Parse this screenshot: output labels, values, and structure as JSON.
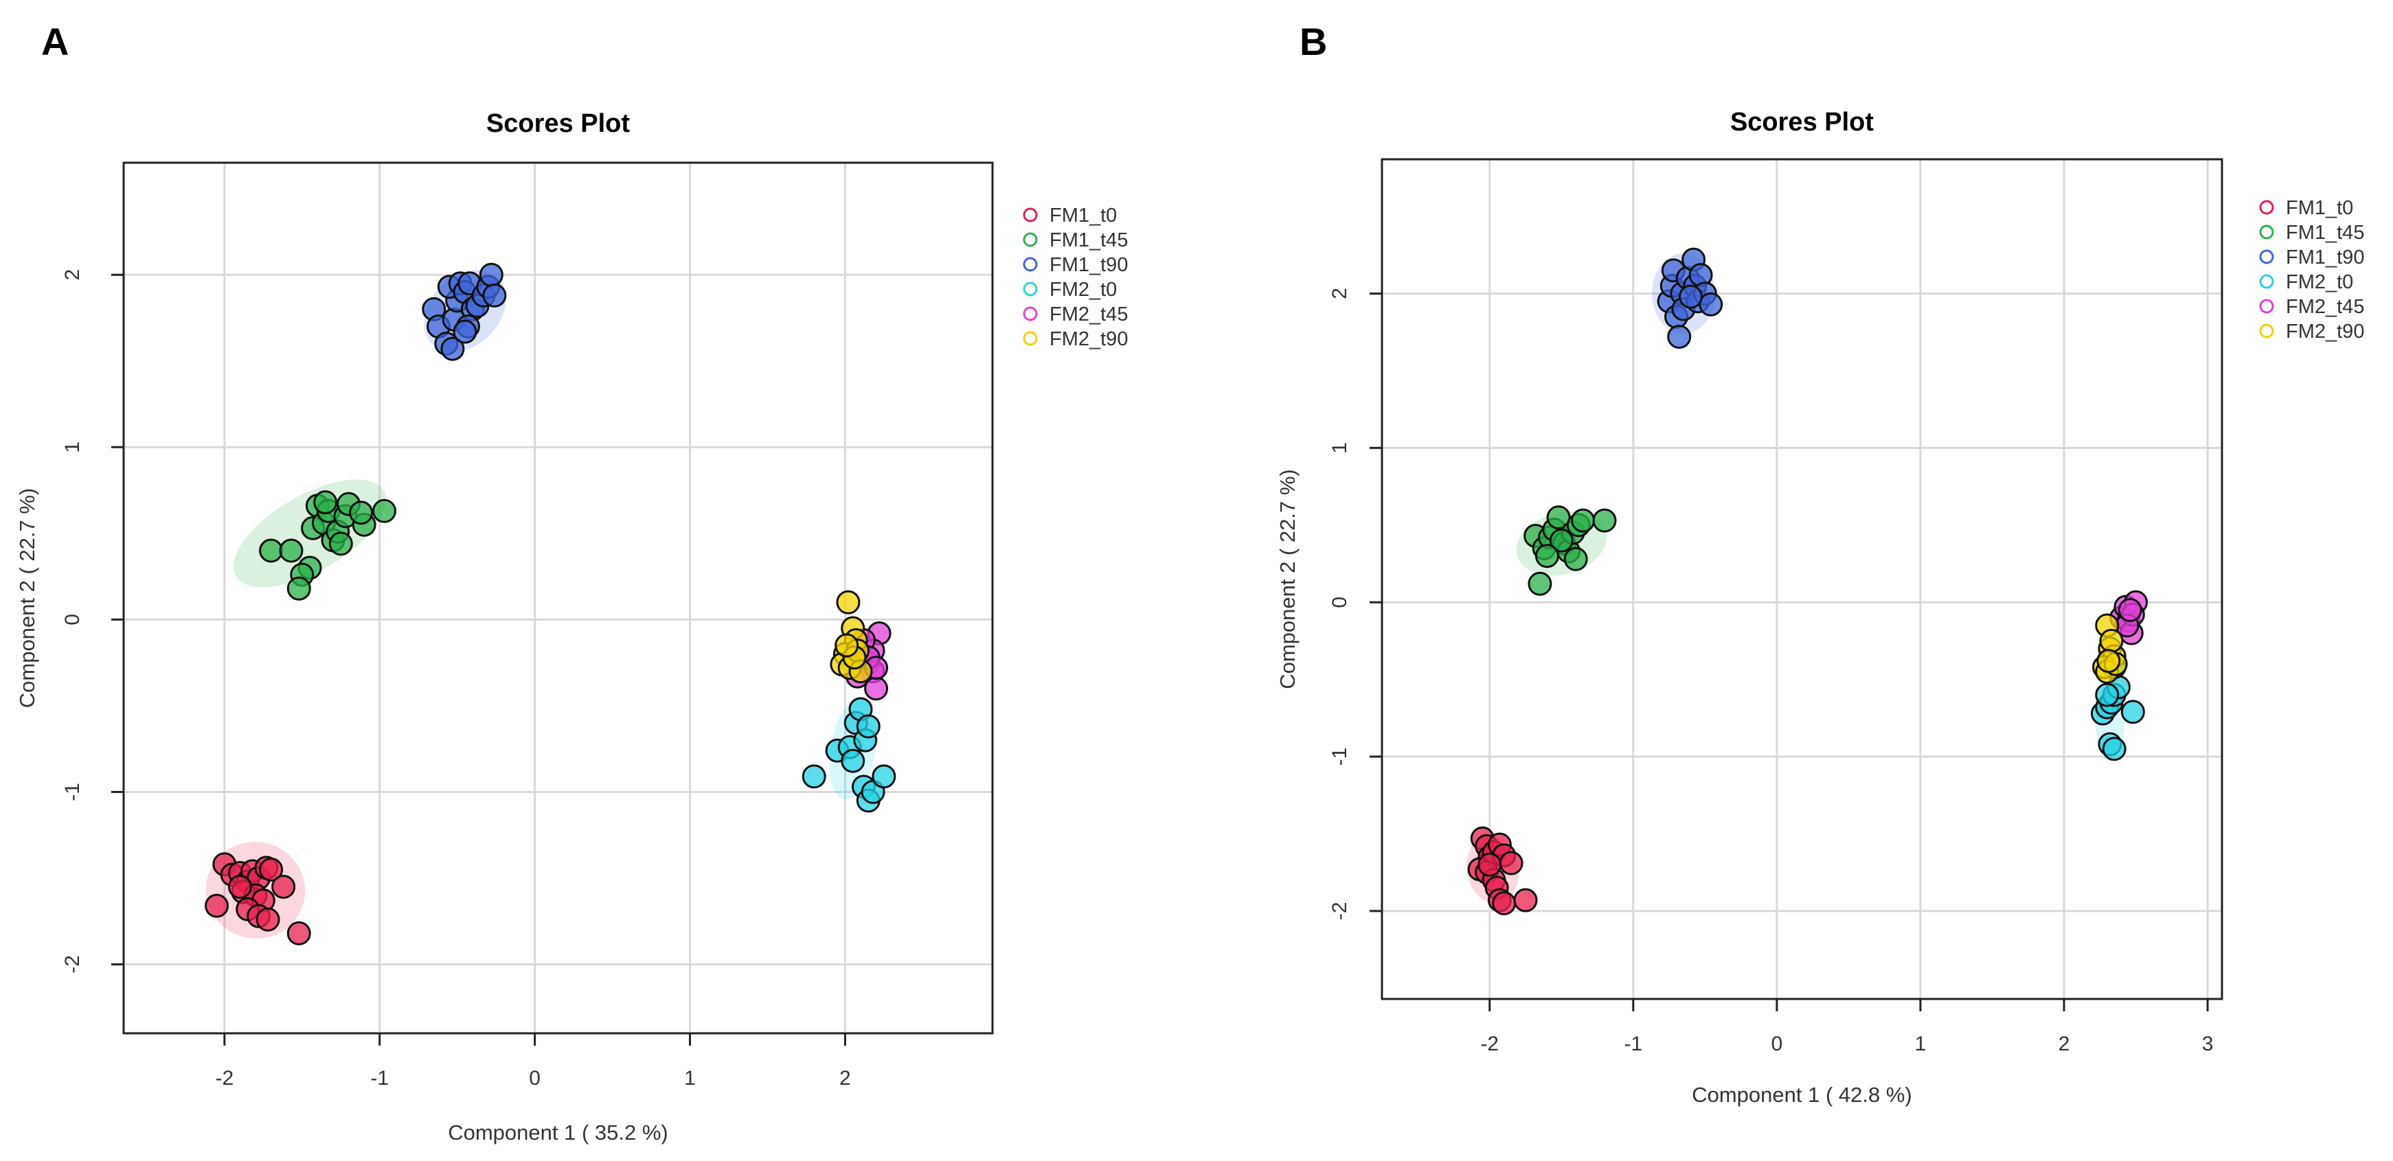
{
  "chart_data": [
    {
      "panel": "A",
      "type": "scatter",
      "title": "Scores Plot",
      "xlabel": "Component 1 ( 35.2 %)",
      "ylabel": "Component 2 ( 22.7 %)",
      "xlim": [
        -2.65,
        2.95
      ],
      "ylim": [
        -2.4,
        2.65
      ],
      "xticks": [
        -2,
        -1,
        0,
        1,
        2
      ],
      "yticks": [
        -2,
        -1,
        0,
        1,
        2
      ],
      "grid": true,
      "legend_position": "top-right",
      "series": [
        {
          "name": "FM1_t0",
          "color": "#e8214f",
          "ellipse": {
            "cx": -1.8,
            "cy": -1.57,
            "rx": 0.32,
            "ry": 0.28,
            "angle": -15
          },
          "points": [
            [
              -2.0,
              -1.42
            ],
            [
              -1.95,
              -1.48
            ],
            [
              -1.9,
              -1.47
            ],
            [
              -1.85,
              -1.52
            ],
            [
              -1.82,
              -1.46
            ],
            [
              -1.78,
              -1.5
            ],
            [
              -1.73,
              -1.44
            ],
            [
              -1.7,
              -1.45
            ],
            [
              -1.88,
              -1.58
            ],
            [
              -1.8,
              -1.6
            ],
            [
              -1.75,
              -1.63
            ],
            [
              -1.85,
              -1.68
            ],
            [
              -1.78,
              -1.72
            ],
            [
              -1.72,
              -1.74
            ],
            [
              -1.62,
              -1.55
            ],
            [
              -2.05,
              -1.66
            ],
            [
              -1.52,
              -1.82
            ],
            [
              -1.9,
              -1.55
            ]
          ]
        },
        {
          "name": "FM1_t45",
          "color": "#2bb04a",
          "ellipse": {
            "cx": -1.45,
            "cy": 0.5,
            "rx": 0.55,
            "ry": 0.22,
            "angle": 30
          },
          "points": [
            [
              -1.7,
              0.4
            ],
            [
              -1.57,
              0.4
            ],
            [
              -1.45,
              0.3
            ],
            [
              -1.5,
              0.26
            ],
            [
              -1.52,
              0.18
            ],
            [
              -1.43,
              0.53
            ],
            [
              -1.4,
              0.66
            ],
            [
              -1.36,
              0.56
            ],
            [
              -1.33,
              0.63
            ],
            [
              -1.3,
              0.46
            ],
            [
              -1.27,
              0.51
            ],
            [
              -1.25,
              0.44
            ],
            [
              -1.22,
              0.6
            ],
            [
              -1.2,
              0.67
            ],
            [
              -1.1,
              0.55
            ],
            [
              -1.12,
              0.62
            ],
            [
              -0.97,
              0.63
            ],
            [
              -1.35,
              0.68
            ]
          ]
        },
        {
          "name": "FM1_t90",
          "color": "#3e66d8",
          "ellipse": {
            "cx": -0.45,
            "cy": 1.79,
            "rx": 0.3,
            "ry": 0.2,
            "angle": 45
          },
          "points": [
            [
              -0.65,
              1.8
            ],
            [
              -0.62,
              1.7
            ],
            [
              -0.57,
              1.6
            ],
            [
              -0.53,
              1.57
            ],
            [
              -0.52,
              1.74
            ],
            [
              -0.5,
              1.85
            ],
            [
              -0.55,
              1.93
            ],
            [
              -0.48,
              1.95
            ],
            [
              -0.45,
              1.9
            ],
            [
              -0.42,
              1.95
            ],
            [
              -0.4,
              1.8
            ],
            [
              -0.43,
              1.7
            ],
            [
              -0.45,
              1.67
            ],
            [
              -0.37,
              1.82
            ],
            [
              -0.33,
              1.88
            ],
            [
              -0.3,
              1.93
            ],
            [
              -0.28,
              2.0
            ],
            [
              -0.26,
              1.88
            ]
          ]
        },
        {
          "name": "FM2_t0",
          "color": "#26d3e6",
          "ellipse": {
            "cx": 2.05,
            "cy": -0.75,
            "rx": 0.33,
            "ry": 0.13,
            "angle": 80
          },
          "points": [
            [
              1.8,
              -0.91
            ],
            [
              1.95,
              -0.76
            ],
            [
              2.03,
              -0.74
            ],
            [
              2.07,
              -0.6
            ],
            [
              2.1,
              -0.52
            ],
            [
              2.13,
              -0.7
            ],
            [
              2.15,
              -0.62
            ],
            [
              2.12,
              -0.97
            ],
            [
              2.15,
              -1.05
            ],
            [
              2.18,
              -1.0
            ],
            [
              2.25,
              -0.91
            ],
            [
              2.05,
              -0.82
            ]
          ]
        },
        {
          "name": "FM2_t45",
          "color": "#e040d8",
          "ellipse": null,
          "points": [
            [
              2.1,
              -0.2
            ],
            [
              2.15,
              -0.25
            ],
            [
              2.18,
              -0.3
            ],
            [
              2.2,
              -0.4
            ],
            [
              2.22,
              -0.08
            ],
            [
              2.18,
              -0.18
            ],
            [
              2.12,
              -0.12
            ],
            [
              2.08,
              -0.33
            ],
            [
              2.15,
              -0.22
            ],
            [
              2.2,
              -0.28
            ]
          ]
        },
        {
          "name": "FM2_t90",
          "color": "#f2d400",
          "ellipse": null,
          "points": [
            [
              2.02,
              0.1
            ],
            [
              2.05,
              -0.05
            ],
            [
              2.07,
              -0.12
            ],
            [
              2.0,
              -0.2
            ],
            [
              1.98,
              -0.26
            ],
            [
              2.03,
              -0.28
            ],
            [
              2.08,
              -0.18
            ],
            [
              2.1,
              -0.3
            ],
            [
              2.06,
              -0.22
            ],
            [
              2.01,
              -0.15
            ]
          ]
        }
      ]
    },
    {
      "panel": "B",
      "type": "scatter",
      "title": "Scores Plot",
      "xlabel": "Component 1 ( 42.8 %)",
      "ylabel": "Component 2 ( 22.7 %)",
      "xlim": [
        -2.75,
        3.1
      ],
      "ylim": [
        -2.57,
        2.87
      ],
      "xticks": [
        -2,
        -1,
        0,
        1,
        2,
        3
      ],
      "yticks": [
        -2,
        -1,
        0,
        1,
        2
      ],
      "grid": true,
      "legend_position": "top-right",
      "series": [
        {
          "name": "FM1_t0",
          "color": "#e8214f",
          "ellipse": {
            "cx": -1.98,
            "cy": -1.73,
            "rx": 0.18,
            "ry": 0.22,
            "angle": 10
          },
          "points": [
            [
              -2.05,
              -1.53
            ],
            [
              -2.02,
              -1.58
            ],
            [
              -2.0,
              -1.65
            ],
            [
              -1.97,
              -1.62
            ],
            [
              -1.93,
              -1.57
            ],
            [
              -1.9,
              -1.64
            ],
            [
              -1.85,
              -1.69
            ],
            [
              -2.07,
              -1.73
            ],
            [
              -2.02,
              -1.75
            ],
            [
              -1.97,
              -1.8
            ],
            [
              -1.95,
              -1.85
            ],
            [
              -1.93,
              -1.93
            ],
            [
              -1.9,
              -1.95
            ],
            [
              -1.75,
              -1.93
            ],
            [
              -2.0,
              -1.7
            ]
          ]
        },
        {
          "name": "FM1_t45",
          "color": "#2bb04a",
          "ellipse": {
            "cx": -1.5,
            "cy": 0.38,
            "rx": 0.32,
            "ry": 0.2,
            "angle": 15
          },
          "points": [
            [
              -1.68,
              0.43
            ],
            [
              -1.65,
              0.12
            ],
            [
              -1.62,
              0.35
            ],
            [
              -1.58,
              0.42
            ],
            [
              -1.55,
              0.47
            ],
            [
              -1.52,
              0.55
            ],
            [
              -1.48,
              0.38
            ],
            [
              -1.45,
              0.33
            ],
            [
              -1.4,
              0.28
            ],
            [
              -1.42,
              0.45
            ],
            [
              -1.38,
              0.5
            ],
            [
              -1.35,
              0.53
            ],
            [
              -1.2,
              0.53
            ],
            [
              -1.5,
              0.4
            ],
            [
              -1.6,
              0.3
            ]
          ]
        },
        {
          "name": "FM1_t90",
          "color": "#3e66d8",
          "ellipse": {
            "cx": -0.65,
            "cy": 2.0,
            "rx": 0.22,
            "ry": 0.26,
            "angle": 0
          },
          "points": [
            [
              -0.75,
              1.95
            ],
            [
              -0.73,
              2.05
            ],
            [
              -0.72,
              2.15
            ],
            [
              -0.7,
              1.85
            ],
            [
              -0.68,
              1.72
            ],
            [
              -0.66,
              2.0
            ],
            [
              -0.65,
              1.9
            ],
            [
              -0.62,
              2.1
            ],
            [
              -0.58,
              2.22
            ],
            [
              -0.57,
              2.05
            ],
            [
              -0.55,
              1.95
            ],
            [
              -0.53,
              2.12
            ],
            [
              -0.5,
              2.0
            ],
            [
              -0.46,
              1.93
            ],
            [
              -0.6,
              1.98
            ]
          ]
        },
        {
          "name": "FM2_t0",
          "color": "#26d3e6",
          "ellipse": {
            "cx": 2.32,
            "cy": -0.78,
            "rx": 0.1,
            "ry": 0.25,
            "angle": 0
          },
          "points": [
            [
              2.27,
              -0.72
            ],
            [
              2.3,
              -0.68
            ],
            [
              2.33,
              -0.65
            ],
            [
              2.35,
              -0.6
            ],
            [
              2.38,
              -0.55
            ],
            [
              2.35,
              -0.42
            ],
            [
              2.32,
              -0.92
            ],
            [
              2.35,
              -0.95
            ],
            [
              2.48,
              -0.71
            ],
            [
              2.3,
              -0.6
            ]
          ]
        },
        {
          "name": "FM2_t45",
          "color": "#e040d8",
          "ellipse": null,
          "points": [
            [
              2.4,
              -0.1
            ],
            [
              2.43,
              -0.03
            ],
            [
              2.45,
              -0.12
            ],
            [
              2.47,
              -0.2
            ],
            [
              2.5,
              0.0
            ],
            [
              2.48,
              -0.08
            ],
            [
              2.44,
              -0.15
            ],
            [
              2.46,
              -0.05
            ]
          ]
        },
        {
          "name": "FM2_t90",
          "color": "#f2d400",
          "ellipse": null,
          "points": [
            [
              2.3,
              -0.15
            ],
            [
              2.32,
              -0.3
            ],
            [
              2.35,
              -0.35
            ],
            [
              2.28,
              -0.42
            ],
            [
              2.3,
              -0.45
            ],
            [
              2.33,
              -0.25
            ],
            [
              2.36,
              -0.4
            ],
            [
              2.31,
              -0.38
            ]
          ]
        }
      ]
    }
  ]
}
